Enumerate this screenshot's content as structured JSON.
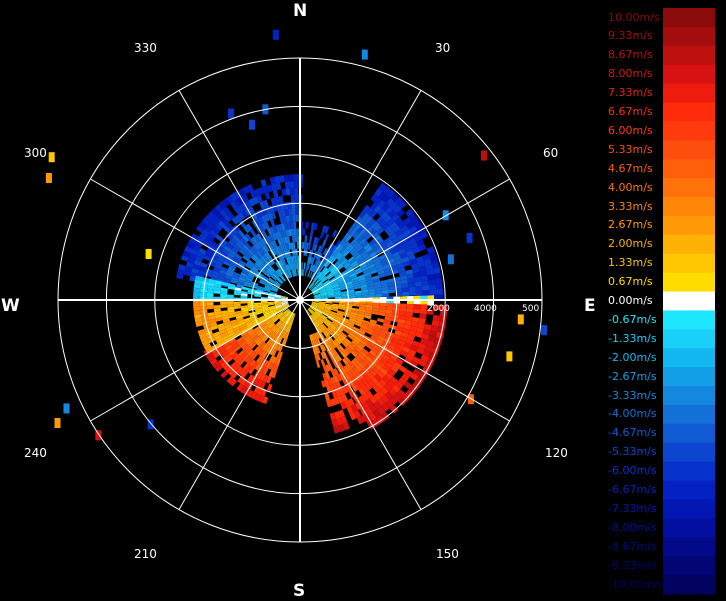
{
  "chart_data": {
    "type": "polar-ppi",
    "cardinals": {
      "north": "N",
      "east": "E",
      "south": "S",
      "west": "W"
    },
    "azimuth_labels": [
      "30",
      "60",
      "120",
      "150",
      "210",
      "240",
      "300",
      "330"
    ],
    "range_labels": [
      "2000",
      "4000",
      "500"
    ],
    "legend": [
      {
        "label": "10.00m/s",
        "color": "#8b0b0b"
      },
      {
        "label": "9.33m/s",
        "color": "#a30d0d"
      },
      {
        "label": "8.67m/s",
        "color": "#be0f0f"
      },
      {
        "label": "8.00m/s",
        "color": "#d81212"
      },
      {
        "label": "7.33m/s",
        "color": "#ee1c0e"
      },
      {
        "label": "6.67m/s",
        "color": "#ff2b0a"
      },
      {
        "label": "6.00m/s",
        "color": "#ff3b0d"
      },
      {
        "label": "5.33m/s",
        "color": "#ff4d0d"
      },
      {
        "label": "4.67m/s",
        "color": "#ff5f0b"
      },
      {
        "label": "4.00m/s",
        "color": "#ff720a"
      },
      {
        "label": "3.33m/s",
        "color": "#ff8608"
      },
      {
        "label": "2.67m/s",
        "color": "#ff9a06"
      },
      {
        "label": "2.00m/s",
        "color": "#ffb004"
      },
      {
        "label": "1.33m/s",
        "color": "#ffc602"
      },
      {
        "label": "0.67m/s",
        "color": "#ffdc00"
      },
      {
        "label": "0.00m/s",
        "color": "#ffffff"
      },
      {
        "label": "-0.67m/s",
        "color": "#1fe6ff"
      },
      {
        "label": "-1.33m/s",
        "color": "#18d0f8"
      },
      {
        "label": "-2.00m/s",
        "color": "#14b8f0"
      },
      {
        "label": "-2.67m/s",
        "color": "#139fe8"
      },
      {
        "label": "-3.33m/s",
        "color": "#1487df"
      },
      {
        "label": "-4.00m/s",
        "color": "#1370d8"
      },
      {
        "label": "-4.67m/s",
        "color": "#105ad3"
      },
      {
        "label": "-5.33m/s",
        "color": "#0c45d0"
      },
      {
        "label": "-6.00m/s",
        "color": "#0832cc"
      },
      {
        "label": "-6.67m/s",
        "color": "#0422c4"
      },
      {
        "label": "-7.33m/s",
        "color": "#0216b4"
      },
      {
        "label": "-8.00m/s",
        "color": "#020fa0"
      },
      {
        "label": "-8.67m/s",
        "color": "#02098a"
      },
      {
        "label": "-9.33m/s",
        "color": "#020574"
      },
      {
        "label": "-10.00m/s",
        "color": "#02035e"
      }
    ],
    "sectors": [
      {
        "az": [
          280,
          360
        ],
        "r": [
          0.1,
          0.52
        ],
        "vel": [
          -2.5,
          -7.0
        ],
        "density": 0.85
      },
      {
        "az": [
          0,
          35
        ],
        "r": [
          0.1,
          0.3
        ],
        "vel": [
          -3.0,
          -6.5
        ],
        "density": 0.7
      },
      {
        "az": [
          35,
          88
        ],
        "r": [
          0.06,
          0.58
        ],
        "vel": [
          -1.0,
          -7.0
        ],
        "density": 0.9
      },
      {
        "az": [
          88,
          92
        ],
        "r": [
          0.05,
          0.55
        ],
        "vel": [
          0.0,
          0.0
        ],
        "density": 0.9
      },
      {
        "az": [
          92,
          150
        ],
        "r": [
          0.05,
          0.6
        ],
        "vel": [
          1.0,
          8.5
        ],
        "density": 0.9
      },
      {
        "az": [
          150,
          165
        ],
        "r": [
          0.15,
          0.55
        ],
        "vel": [
          3.0,
          8.0
        ],
        "density": 0.8
      },
      {
        "az": [
          198,
          240
        ],
        "r": [
          0.06,
          0.45
        ],
        "vel": [
          1.0,
          8.0
        ],
        "density": 0.9
      },
      {
        "az": [
          240,
          270
        ],
        "r": [
          0.05,
          0.42
        ],
        "vel": [
          0.5,
          3.0
        ],
        "density": 0.9
      },
      {
        "az": [
          270,
          282
        ],
        "r": [
          0.05,
          0.42
        ],
        "vel": [
          0.0,
          -1.5
        ],
        "density": 0.85
      }
    ],
    "scatter": [
      {
        "az": 340,
        "r": 0.82,
        "vel": -6.0
      },
      {
        "az": 345,
        "r": 0.75,
        "vel": -5.0
      },
      {
        "az": 350,
        "r": 0.8,
        "vel": -4.5
      },
      {
        "az": 355,
        "r": 1.1,
        "vel": -6.5
      },
      {
        "az": 15,
        "r": 1.05,
        "vel": -3.0
      },
      {
        "az": 52,
        "r": 0.97,
        "vel": 8.5
      },
      {
        "az": 60,
        "r": 0.7,
        "vel": -3.5
      },
      {
        "az": 70,
        "r": 0.75,
        "vel": -6.0
      },
      {
        "az": 75,
        "r": 0.65,
        "vel": -4.0
      },
      {
        "az": 95,
        "r": 0.92,
        "vel": 2.0
      },
      {
        "az": 97,
        "r": 1.02,
        "vel": -5.0
      },
      {
        "az": 105,
        "r": 0.9,
        "vel": 1.5
      },
      {
        "az": 120,
        "r": 0.82,
        "vel": 4.5
      },
      {
        "az": 230,
        "r": 0.8,
        "vel": -6.0
      },
      {
        "az": 236,
        "r": 1.0,
        "vel": 8.0
      },
      {
        "az": 243,
        "r": 1.12,
        "vel": 3.0
      },
      {
        "az": 245,
        "r": 1.06,
        "vel": -3.0
      },
      {
        "az": 296,
        "r": 1.15,
        "vel": 2.5
      },
      {
        "az": 300,
        "r": 1.18,
        "vel": 1.5
      },
      {
        "az": 287,
        "r": 0.65,
        "vel": 1.0
      }
    ]
  }
}
